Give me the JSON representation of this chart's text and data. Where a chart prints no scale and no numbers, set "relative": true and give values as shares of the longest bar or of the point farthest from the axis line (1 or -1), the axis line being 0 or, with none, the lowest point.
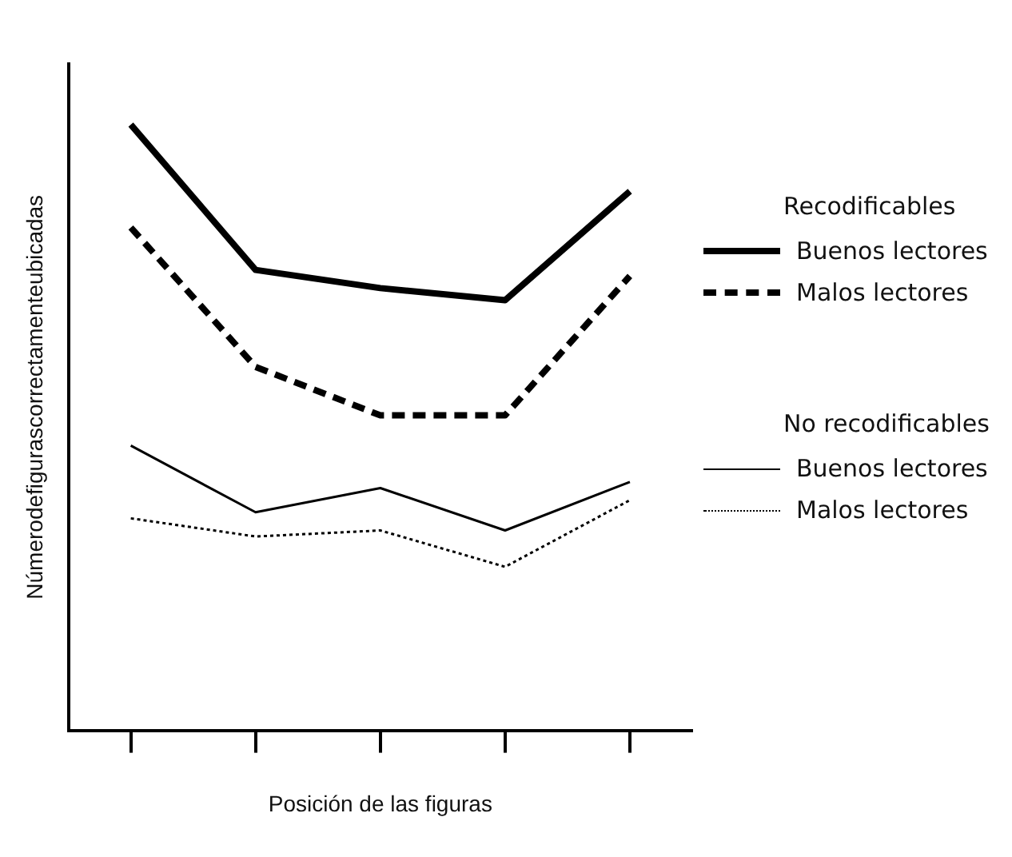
{
  "chart_data": {
    "type": "line",
    "relative": true,
    "xlabel": "Posición de las figuras",
    "ylabel": "Númerodefigurascorrectamenteubicadas",
    "categories": [
      null,
      null,
      null,
      null,
      null
    ],
    "series": [
      {
        "name": "Buenos lectores",
        "color": "#000000",
        "line_style": "solid",
        "values": [
          1,
          0.76,
          0.73,
          0.71,
          0.89
        ]
      },
      {
        "name": "Malos lectores",
        "color": "#000000",
        "line_style": "dashed",
        "values": [
          0.83,
          0.6,
          0.52,
          0.52,
          0.75
        ]
      },
      {
        "name": "Buenos lectores",
        "color": "#000000",
        "line_style": "solid",
        "values": [
          0.47,
          0.36,
          0.4,
          0.33,
          0.41
        ]
      },
      {
        "name": "Malos lectores",
        "color": "#000000",
        "line_style": "dotted",
        "values": [
          0.35,
          0.32,
          0.33,
          0.27,
          0.38
        ]
      }
    ],
    "annotations": [
      "Recodificables",
      "No recodificables"
    ],
    "legend": "right",
    "grid": false,
    "marker": "none"
  }
}
